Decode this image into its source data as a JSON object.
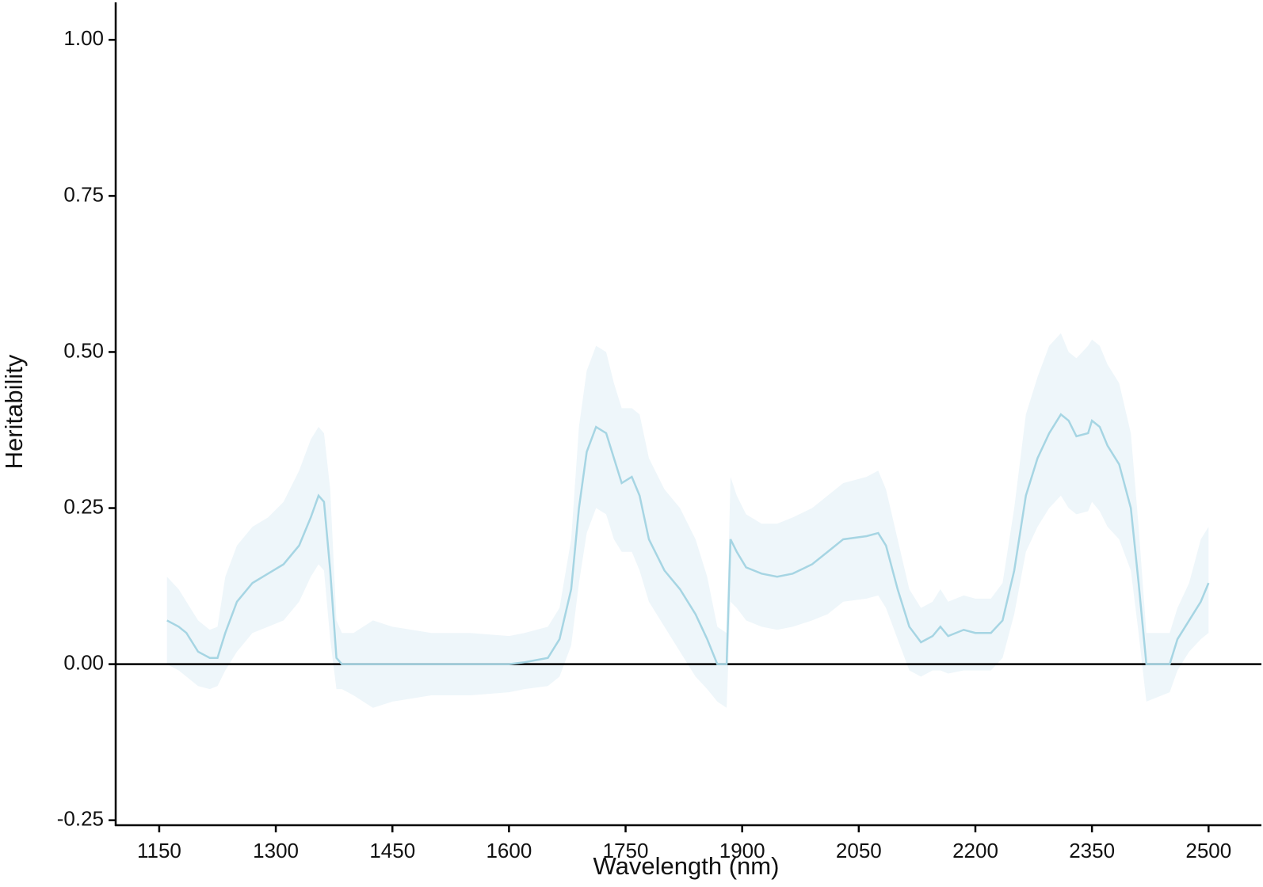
{
  "chart_data": {
    "type": "line",
    "x_label": "Wavelength (nm)",
    "y_label": "Heritability",
    "xlim": [
      1094,
      2568
    ],
    "ylim": [
      -0.258,
      1.06
    ],
    "xticks": [
      1150,
      1300,
      1450,
      1600,
      1750,
      1900,
      2050,
      2200,
      2350,
      2500
    ],
    "yticks": [
      {
        "value": -0.25,
        "label": "-0.25"
      },
      {
        "value": 0,
        "label": "0.00"
      },
      {
        "value": 0.25,
        "label": "0.25"
      },
      {
        "value": 0.5,
        "label": "0.50"
      },
      {
        "value": 0.75,
        "label": "0.75"
      },
      {
        "value": 1,
        "label": "1.00"
      }
    ],
    "hline": 0,
    "color": "#a6d5e3",
    "band_color": "#eef6fa",
    "x": [
      1160,
      1175,
      1185,
      1200,
      1215,
      1225,
      1235,
      1250,
      1270,
      1290,
      1310,
      1330,
      1345,
      1355,
      1362,
      1370,
      1378,
      1385,
      1400,
      1425,
      1450,
      1500,
      1550,
      1600,
      1620,
      1650,
      1665,
      1680,
      1690,
      1700,
      1712,
      1725,
      1735,
      1745,
      1758,
      1768,
      1780,
      1800,
      1820,
      1840,
      1855,
      1868,
      1880,
      1885,
      1893,
      1905,
      1925,
      1945,
      1965,
      1990,
      2010,
      2030,
      2060,
      2075,
      2085,
      2100,
      2115,
      2130,
      2145,
      2155,
      2165,
      2185,
      2200,
      2220,
      2235,
      2250,
      2265,
      2280,
      2295,
      2310,
      2320,
      2330,
      2345,
      2350,
      2360,
      2370,
      2385,
      2400,
      2410,
      2420,
      2450,
      2460,
      2475,
      2490,
      2500
    ],
    "values": [
      0.07,
      0.06,
      0.05,
      0.02,
      0.01,
      0.01,
      0.05,
      0.1,
      0.13,
      0.145,
      0.16,
      0.19,
      0.235,
      0.27,
      0.26,
      0.15,
      0.01,
      0.0,
      0,
      0,
      0,
      0,
      0,
      0,
      0.003,
      0.01,
      0.04,
      0.12,
      0.25,
      0.34,
      0.38,
      0.37,
      0.33,
      0.29,
      0.3,
      0.27,
      0.2,
      0.15,
      0.12,
      0.08,
      0.04,
      0.0,
      0.0,
      0.2,
      0.18,
      0.155,
      0.145,
      0.14,
      0.145,
      0.16,
      0.18,
      0.2,
      0.205,
      0.21,
      0.19,
      0.12,
      0.06,
      0.035,
      0.045,
      0.06,
      0.045,
      0.055,
      0.05,
      0.05,
      0.07,
      0.15,
      0.27,
      0.33,
      0.37,
      0.4,
      0.39,
      0.365,
      0.37,
      0.39,
      0.38,
      0.35,
      0.32,
      0.25,
      0.13,
      0.0,
      0.0,
      0.04,
      0.07,
      0.1,
      0.13
    ],
    "upper": [
      0.14,
      0.12,
      0.1,
      0.07,
      0.055,
      0.06,
      0.14,
      0.19,
      0.22,
      0.235,
      0.26,
      0.31,
      0.36,
      0.38,
      0.37,
      0.28,
      0.07,
      0.05,
      0.05,
      0.07,
      0.06,
      0.05,
      0.05,
      0.045,
      0.05,
      0.06,
      0.09,
      0.2,
      0.38,
      0.47,
      0.51,
      0.5,
      0.45,
      0.41,
      0.41,
      0.4,
      0.33,
      0.28,
      0.25,
      0.2,
      0.14,
      0.06,
      0.05,
      0.3,
      0.27,
      0.24,
      0.225,
      0.225,
      0.235,
      0.25,
      0.27,
      0.29,
      0.3,
      0.31,
      0.28,
      0.2,
      0.12,
      0.09,
      0.1,
      0.12,
      0.1,
      0.11,
      0.105,
      0.105,
      0.13,
      0.25,
      0.4,
      0.46,
      0.51,
      0.53,
      0.5,
      0.49,
      0.51,
      0.52,
      0.51,
      0.48,
      0.45,
      0.37,
      0.22,
      0.05,
      0.05,
      0.09,
      0.13,
      0.2,
      0.22
    ],
    "lower": [
      0.0,
      -0.01,
      -0.02,
      -0.035,
      -0.04,
      -0.035,
      -0.01,
      0.02,
      0.05,
      0.06,
      0.07,
      0.1,
      0.14,
      0.16,
      0.15,
      0.04,
      -0.04,
      -0.04,
      -0.05,
      -0.07,
      -0.06,
      -0.05,
      -0.05,
      -0.045,
      -0.04,
      -0.035,
      -0.02,
      0.03,
      0.13,
      0.21,
      0.25,
      0.24,
      0.2,
      0.18,
      0.18,
      0.15,
      0.1,
      0.06,
      0.02,
      -0.02,
      -0.04,
      -0.06,
      -0.07,
      0.1,
      0.09,
      0.07,
      0.06,
      0.055,
      0.06,
      0.07,
      0.08,
      0.1,
      0.105,
      0.11,
      0.09,
      0.04,
      -0.01,
      -0.02,
      -0.01,
      -0.01,
      -0.015,
      -0.01,
      -0.01,
      -0.01,
      0.01,
      0.08,
      0.18,
      0.22,
      0.25,
      0.27,
      0.25,
      0.24,
      0.245,
      0.26,
      0.245,
      0.22,
      0.2,
      0.15,
      0.05,
      -0.06,
      -0.045,
      -0.01,
      0.02,
      0.04,
      0.05
    ]
  }
}
